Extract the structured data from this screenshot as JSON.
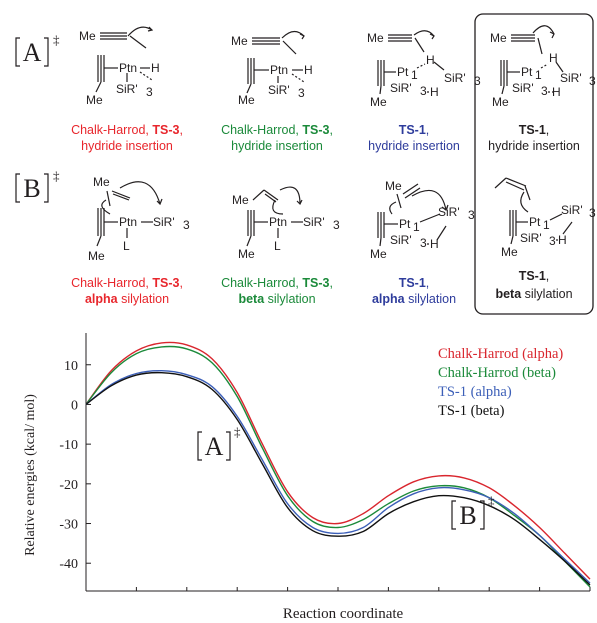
{
  "panel_labels": {
    "A": "A",
    "B": "B",
    "dagger": "‡"
  },
  "row_a": [
    {
      "line1": "Chalk-Harrod, ",
      "bold": "TS-3",
      "line1_end": ",",
      "line2": "hydride insertion",
      "color": "#e8262c"
    },
    {
      "line1": "Chalk-Harrod, ",
      "bold": "TS-3",
      "line1_end": ",",
      "line2": "hydride insertion",
      "color": "#1b8a3a"
    },
    {
      "line1": "",
      "bold": "TS-1",
      "line1_end": ",",
      "line2": "hydride insertion",
      "color": "#2e3c9c"
    },
    {
      "line1": "",
      "bold": "TS-1",
      "line1_end": ",",
      "line2": "hydride insertion",
      "color": "#231f20"
    }
  ],
  "row_b": [
    {
      "line1": "Chalk-Harrod, ",
      "bold": "TS-3",
      "line1_end": ",",
      "line2_bold": "alpha",
      "line2": " silylation",
      "color": "#e8262c"
    },
    {
      "line1": "Chalk-Harrod, ",
      "bold": "TS-3",
      "line1_end": ",",
      "line2_bold": "beta",
      "line2": " silylation",
      "color": "#1b8a3a"
    },
    {
      "line1": "",
      "bold": "TS-1",
      "line1_end": ",",
      "line2_bold": "alpha",
      "line2": " silylation",
      "color": "#2e3c9c"
    },
    {
      "line1": "",
      "bold": "TS-1",
      "line1_end": ",",
      "line2_bold": "beta",
      "line2": " silylation",
      "color": "#231f20"
    }
  ],
  "chem": {
    "me": "Me",
    "ptn": "Ptn",
    "pt1": "Pt",
    "pt1_sub": "1",
    "h": "H",
    "l": "L",
    "sir3": "SiR'",
    "sub3": "3"
  },
  "chart_data": {
    "type": "line",
    "xlabel": "Reaction coordinate",
    "ylabel": "Relative energies (kcal/ mol)",
    "ylim": [
      -47,
      18
    ],
    "yticks": [
      10,
      0,
      -10,
      -20,
      -30,
      -40
    ],
    "ytick_labels": [
      "10",
      "0",
      "-10",
      "-20",
      "-30",
      "-40"
    ],
    "x": [
      0,
      0.05,
      0.1,
      0.15,
      0.2,
      0.25,
      0.3,
      0.35,
      0.4,
      0.45,
      0.5,
      0.55,
      0.6,
      0.65,
      0.7,
      0.75,
      0.8,
      0.85,
      0.9,
      0.95,
      1.0
    ],
    "annotations": [
      {
        "text": "A",
        "sup": "‡"
      },
      {
        "text": "B",
        "sup": "‡"
      }
    ],
    "series": [
      {
        "name": "Chalk-Harrod (alpha)",
        "color": "#d9262e",
        "values": [
          0,
          8.5,
          13.5,
          15.5,
          15,
          11.5,
          3,
          -10,
          -22,
          -28.5,
          -30,
          -27.5,
          -23,
          -19.5,
          -18,
          -18.5,
          -21,
          -25.5,
          -31,
          -37.5,
          -44
        ]
      },
      {
        "name": "Chalk-Harrod (beta)",
        "color": "#1b8a3a",
        "values": [
          0,
          8,
          12.8,
          14.5,
          14,
          10.5,
          2,
          -11,
          -23,
          -29.5,
          -31,
          -29,
          -25,
          -21.8,
          -20.5,
          -21,
          -23.5,
          -28,
          -33,
          -39.5,
          -46
        ]
      },
      {
        "name": "TS-1 (alpha)",
        "color": "#3c5fb8",
        "values": [
          0,
          5,
          7.8,
          8.5,
          7.5,
          4.5,
          -3,
          -14,
          -25,
          -31,
          -32.5,
          -31,
          -26,
          -22.5,
          -21,
          -21.5,
          -23.5,
          -27.5,
          -33,
          -39,
          -45
        ]
      },
      {
        "name": "TS-1 (beta)",
        "color": "#111111",
        "values": [
          0,
          4.7,
          7.4,
          8,
          7,
          3.8,
          -3.8,
          -15,
          -26,
          -31.8,
          -33.2,
          -32,
          -27.5,
          -24.5,
          -23,
          -23.5,
          -25.5,
          -29,
          -34,
          -39.5,
          -45.5
        ]
      }
    ]
  }
}
